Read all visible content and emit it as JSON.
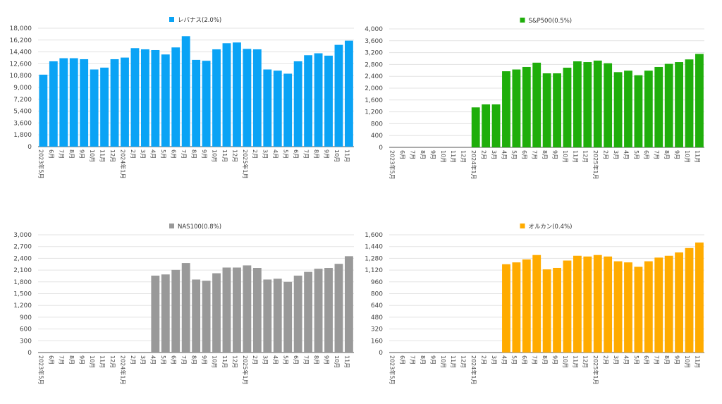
{
  "chart_data": [
    {
      "type": "bar",
      "title": "",
      "legend": "レバナス(2.0%)",
      "legend_position": "top-center",
      "color": "#0aa3f5",
      "ylim": [
        0,
        18000
      ],
      "yticks": [
        "0",
        "1,800",
        "3,600",
        "5,400",
        "7,200",
        "9,000",
        "10,800",
        "12,600",
        "14,400",
        "16,200",
        "18,000"
      ],
      "categories": [
        "2023年5月",
        "6月",
        "7月",
        "8月",
        "9月",
        "10月",
        "11月",
        "12月",
        "2024年1月",
        "2月",
        "3月",
        "4月",
        "5月",
        "6月",
        "7月",
        "8月",
        "9月",
        "10月",
        "11月",
        "12月",
        "2025年1月",
        "2月",
        "3月",
        "4月",
        "5月",
        "6月",
        "7月",
        "8月",
        "9月",
        "10月",
        "11月"
      ],
      "values": [
        10940,
        12970,
        13440,
        13440,
        13290,
        11730,
        12010,
        13290,
        13540,
        14970,
        14790,
        14680,
        14010,
        15080,
        16790,
        13190,
        13050,
        14790,
        15720,
        15830,
        14860,
        14790,
        11730,
        11550,
        11090,
        12970,
        13900,
        14190,
        13830,
        15470,
        16110
      ],
      "grid": true
    },
    {
      "type": "bar",
      "title": "",
      "legend": "S&P500(0.5%)",
      "legend_position": "top-center",
      "color": "#1fae0b",
      "ylim": [
        0,
        4000
      ],
      "yticks": [
        "0",
        "400",
        "800",
        "1,200",
        "1,600",
        "2,000",
        "2,400",
        "2,800",
        "3,200",
        "3,600",
        "4,000"
      ],
      "categories": [
        "2023年5月",
        "6月",
        "7月",
        "8月",
        "9月",
        "10月",
        "11月",
        "12月",
        "2024年1月",
        "2月",
        "3月",
        "4月",
        "5月",
        "6月",
        "7月",
        "8月",
        "9月",
        "10月",
        "11月",
        "12月",
        "2025年1月",
        "2月",
        "3月",
        "4月",
        "5月",
        "6月",
        "7月",
        "8月",
        "9月",
        "10月",
        "11月"
      ],
      "values": [
        0,
        0,
        0,
        0,
        0,
        0,
        0,
        0,
        1350,
        1450,
        1450,
        2570,
        2630,
        2715,
        2860,
        2500,
        2500,
        2690,
        2905,
        2880,
        2930,
        2840,
        2540,
        2590,
        2435,
        2590,
        2715,
        2820,
        2880,
        2970,
        3155
      ],
      "grid": true
    },
    {
      "type": "bar",
      "title": "",
      "legend": "NAS100(0.8%)",
      "legend_position": "top-center",
      "color": "#999999",
      "ylim": [
        0,
        3000
      ],
      "yticks": [
        "0",
        "300",
        "600",
        "900",
        "1,200",
        "1,500",
        "1,800",
        "2,100",
        "2,400",
        "2,700",
        "3,000"
      ],
      "categories": [
        "2023年5月",
        "6月",
        "7月",
        "8月",
        "9月",
        "10月",
        "11月",
        "12月",
        "2024年1月",
        "2月",
        "3月",
        "4月",
        "5月",
        "6月",
        "7月",
        "8月",
        "9月",
        "10月",
        "11月",
        "12月",
        "2025年1月",
        "2月",
        "3月",
        "4月",
        "5月",
        "6月",
        "7月",
        "8月",
        "9月",
        "10月",
        "11月"
      ],
      "values": [
        0,
        0,
        0,
        0,
        0,
        0,
        0,
        0,
        0,
        0,
        0,
        1960,
        1990,
        2105,
        2280,
        1860,
        1830,
        2020,
        2165,
        2165,
        2220,
        2155,
        1860,
        1880,
        1800,
        1960,
        2055,
        2135,
        2155,
        2260,
        2455
      ],
      "grid": true
    },
    {
      "type": "bar",
      "title": "",
      "legend": "オルカン(0.4%)",
      "legend_position": "top-center",
      "color": "#ffab00",
      "ylim": [
        0,
        1600
      ],
      "yticks": [
        "0",
        "160",
        "320",
        "480",
        "640",
        "800",
        "960",
        "1,120",
        "1,280",
        "1,440",
        "1,600"
      ],
      "categories": [
        "2023年5月",
        "6月",
        "7月",
        "8月",
        "9月",
        "10月",
        "11月",
        "12月",
        "2024年1月",
        "2月",
        "3月",
        "4月",
        "5月",
        "6月",
        "7月",
        "8月",
        "9月",
        "10月",
        "11月",
        "12月",
        "2025年1月",
        "2月",
        "3月",
        "4月",
        "5月",
        "6月",
        "7月",
        "8月",
        "9月",
        "10月",
        "11月"
      ],
      "values": [
        0,
        0,
        0,
        0,
        0,
        0,
        0,
        0,
        0,
        0,
        0,
        1200,
        1225,
        1265,
        1325,
        1130,
        1150,
        1250,
        1315,
        1305,
        1325,
        1305,
        1240,
        1225,
        1165,
        1240,
        1290,
        1315,
        1360,
        1420,
        1495
      ],
      "grid": true
    }
  ]
}
